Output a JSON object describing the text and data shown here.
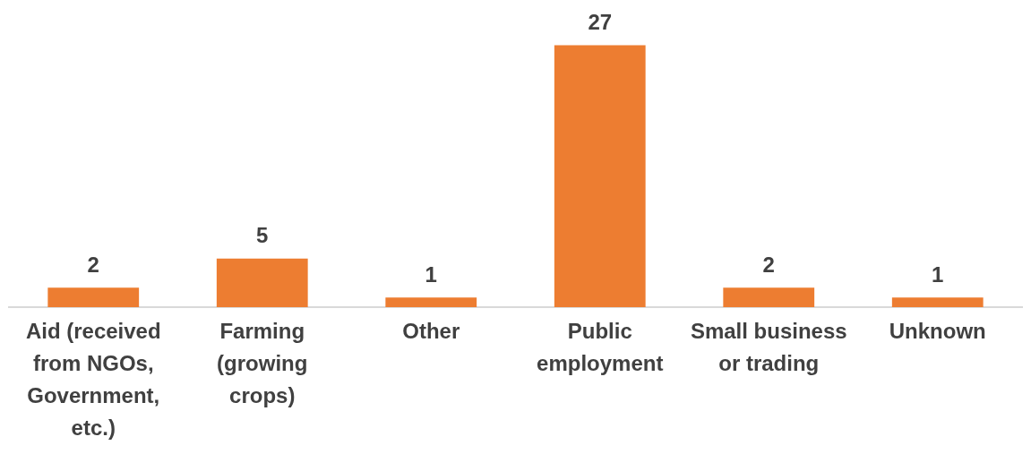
{
  "chart_data": {
    "type": "bar",
    "categories": [
      "Aid (received from NGOs, Government, etc.)",
      "Farming (growing crops)",
      "Other",
      "Public employment",
      "Small business or trading",
      "Unknown"
    ],
    "values": [
      2,
      5,
      1,
      27,
      2,
      1
    ],
    "color": "#ed7d31",
    "data_labels": true,
    "legend": false
  }
}
